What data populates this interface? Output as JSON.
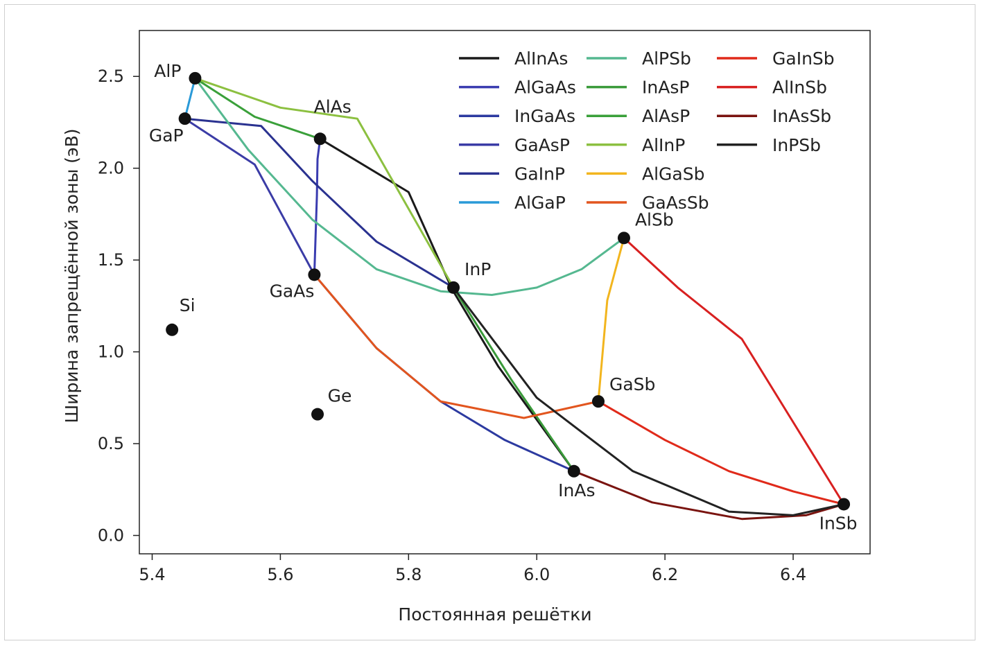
{
  "chart_data": {
    "type": "line",
    "xlabel": "Постоянная решётки",
    "ylabel": "Ширина запрещённой зоны (эВ)",
    "xlim": [
      5.38,
      6.52
    ],
    "ylim": [
      -0.1,
      2.75
    ],
    "xticks": [
      5.4,
      5.6,
      5.8,
      6.0,
      6.2,
      6.4
    ],
    "xtick_labels": [
      "5.4",
      "5.6",
      "5.8",
      "6.0",
      "6.2",
      "6.4"
    ],
    "yticks": [
      0.0,
      0.5,
      1.0,
      1.5,
      2.0,
      2.5
    ],
    "ytick_labels": [
      "0.0",
      "0.5",
      "1.0",
      "1.5",
      "2.0",
      "2.5"
    ],
    "grid": false,
    "legend_position": "top-right",
    "points": [
      {
        "name": "AlP",
        "x": 5.467,
        "y": 2.49
      },
      {
        "name": "GaP",
        "x": 5.451,
        "y": 2.27
      },
      {
        "name": "AlAs",
        "x": 5.662,
        "y": 2.16
      },
      {
        "name": "GaAs",
        "x": 5.653,
        "y": 1.42
      },
      {
        "name": "InP",
        "x": 5.87,
        "y": 1.35
      },
      {
        "name": "AlSb",
        "x": 6.136,
        "y": 1.62
      },
      {
        "name": "GaSb",
        "x": 6.096,
        "y": 0.73
      },
      {
        "name": "InAs",
        "x": 6.058,
        "y": 0.35
      },
      {
        "name": "InSb",
        "x": 6.479,
        "y": 0.17
      },
      {
        "name": "Si",
        "x": 5.431,
        "y": 1.12
      },
      {
        "name": "Ge",
        "x": 5.658,
        "y": 0.66
      }
    ],
    "series": [
      {
        "name": "AlInAs",
        "color": "#1a1a1a",
        "x": [
          5.662,
          5.8,
          5.868,
          5.94,
          6.058
        ],
        "y": [
          2.16,
          1.87,
          1.34,
          0.92,
          0.35
        ]
      },
      {
        "name": "AlGaAs",
        "color": "#3a3cb0",
        "x": [
          5.662,
          5.658,
          5.657,
          5.653
        ],
        "y": [
          2.16,
          2.05,
          1.85,
          1.42
        ]
      },
      {
        "name": "InGaAs",
        "color": "#2c3aa0",
        "x": [
          5.653,
          5.75,
          5.85,
          5.95,
          6.058
        ],
        "y": [
          1.42,
          1.02,
          0.73,
          0.52,
          0.35
        ]
      },
      {
        "name": "GaAsP",
        "color": "#3b3ca6",
        "x": [
          5.451,
          5.56,
          5.653
        ],
        "y": [
          2.27,
          2.02,
          1.42
        ]
      },
      {
        "name": "GaInP",
        "color": "#2a3290",
        "x": [
          5.451,
          5.57,
          5.65,
          5.75,
          5.87
        ],
        "y": [
          2.27,
          2.23,
          1.93,
          1.6,
          1.35
        ]
      },
      {
        "name": "AlGaP",
        "color": "#2a9ad8",
        "x": [
          5.467,
          5.451
        ],
        "y": [
          2.49,
          2.27
        ]
      },
      {
        "name": "AlPSb",
        "color": "#55b890",
        "x": [
          5.467,
          5.55,
          5.65,
          5.75,
          5.85,
          5.93,
          6.0,
          6.07,
          6.136
        ],
        "y": [
          2.49,
          2.1,
          1.72,
          1.45,
          1.33,
          1.31,
          1.35,
          1.45,
          1.62
        ]
      },
      {
        "name": "InAsP",
        "color": "#3a9a3a",
        "x": [
          5.87,
          5.96,
          6.058
        ],
        "y": [
          1.35,
          0.85,
          0.35
        ]
      },
      {
        "name": "AlAsP",
        "color": "#3aa03a",
        "x": [
          5.467,
          5.56,
          5.662
        ],
        "y": [
          2.49,
          2.28,
          2.16
        ]
      },
      {
        "name": "AlInP",
        "color": "#8cc040",
        "x": [
          5.467,
          5.6,
          5.72,
          5.87
        ],
        "y": [
          2.49,
          2.33,
          2.27,
          1.35
        ]
      },
      {
        "name": "AlGaSb",
        "color": "#f2b51e",
        "x": [
          6.136,
          6.11,
          6.096
        ],
        "y": [
          1.62,
          1.28,
          0.73
        ]
      },
      {
        "name": "GaAsSb",
        "color": "#e2551e",
        "x": [
          5.653,
          5.75,
          5.85,
          5.98,
          6.096
        ],
        "y": [
          1.42,
          1.02,
          0.73,
          0.64,
          0.73
        ]
      },
      {
        "name": "GaInSb",
        "color": "#e02a1a",
        "x": [
          6.096,
          6.2,
          6.3,
          6.4,
          6.479
        ],
        "y": [
          0.73,
          0.52,
          0.35,
          0.24,
          0.17
        ]
      },
      {
        "name": "AlInSb",
        "color": "#d82020",
        "x": [
          6.136,
          6.22,
          6.32,
          6.479
        ],
        "y": [
          1.62,
          1.35,
          1.07,
          0.17
        ]
      },
      {
        "name": "InAsSb",
        "color": "#7a1410",
        "x": [
          6.058,
          6.18,
          6.32,
          6.42,
          6.479
        ],
        "y": [
          0.35,
          0.18,
          0.09,
          0.11,
          0.17
        ]
      },
      {
        "name": "InPSb",
        "color": "#222222",
        "x": [
          5.87,
          6.0,
          6.15,
          6.3,
          6.4,
          6.479
        ],
        "y": [
          1.35,
          0.75,
          0.35,
          0.13,
          0.11,
          0.17
        ]
      }
    ]
  }
}
